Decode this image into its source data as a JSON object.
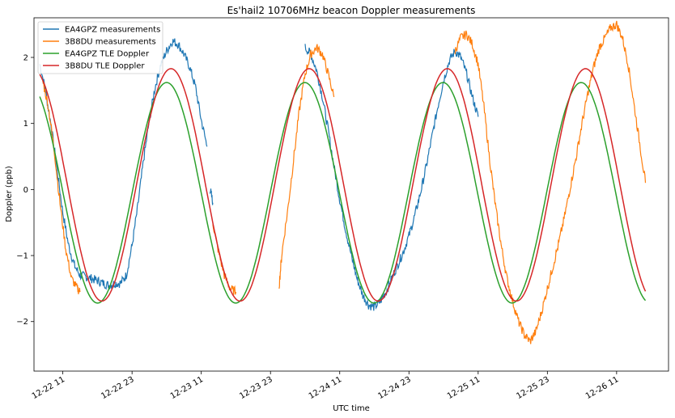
{
  "chart_data": {
    "type": "line",
    "title": "Es'hail2 10706MHz beacon Doppler measurements",
    "xlabel": "UTC time",
    "ylabel": "Doppler (ppb)",
    "xlim": [
      "2018-12-22 06:00",
      "2018-12-26 20:00"
    ],
    "ylim": [
      -2.75,
      2.6
    ],
    "x_ticks": [
      {
        "value": "2018-12-22 11:00",
        "label": "12-22 11"
      },
      {
        "value": "2018-12-22 23:00",
        "label": "12-22 23"
      },
      {
        "value": "2018-12-23 11:00",
        "label": "12-23 11"
      },
      {
        "value": "2018-12-23 23:00",
        "label": "12-23 23"
      },
      {
        "value": "2018-12-24 11:00",
        "label": "12-24 11"
      },
      {
        "value": "2018-12-24 23:00",
        "label": "12-24 23"
      },
      {
        "value": "2018-12-25 11:00",
        "label": "12-25 11"
      },
      {
        "value": "2018-12-25 23:00",
        "label": "12-25 23"
      },
      {
        "value": "2018-12-26 11:00",
        "label": "12-26 11"
      }
    ],
    "y_ticks": [
      {
        "value": -2,
        "label": "−2"
      },
      {
        "value": -1,
        "label": "−1"
      },
      {
        "value": 0,
        "label": "0"
      },
      {
        "value": 1,
        "label": "1"
      },
      {
        "value": 2,
        "label": "2"
      }
    ],
    "grid": false,
    "legend_position": "top-left",
    "series": [
      {
        "name": "EA4GPZ measurements",
        "color": "#1f77b4",
        "segments": [
          {
            "x": [
              "2018-12-22 07:00",
              "2018-12-22 08:00",
              "2018-12-22 09:00",
              "2018-12-22 10:00",
              "2018-12-22 11:00",
              "2018-12-22 12:00",
              "2018-12-22 13:00",
              "2018-12-22 14:00",
              "2018-12-22 15:00",
              "2018-12-22 16:00",
              "2018-12-22 17:00",
              "2018-12-22 18:00",
              "2018-12-22 19:00",
              "2018-12-22 20:00",
              "2018-12-22 21:00",
              "2018-12-22 22:00",
              "2018-12-22 23:00",
              "2018-12-23 00:00",
              "2018-12-23 01:00",
              "2018-12-23 02:00",
              "2018-12-23 03:00",
              "2018-12-23 04:00",
              "2018-12-23 05:00",
              "2018-12-23 06:00",
              "2018-12-23 07:00",
              "2018-12-23 08:00",
              "2018-12-23 09:00",
              "2018-12-23 10:00",
              "2018-12-23 11:00",
              "2018-12-23 12:00"
            ],
            "y": [
              1.9,
              1.5,
              0.95,
              0.3,
              -0.35,
              -0.85,
              -1.15,
              -1.3,
              -1.32,
              -1.35,
              -1.38,
              -1.42,
              -1.45,
              -1.42,
              -1.42,
              -1.3,
              -0.85,
              -0.25,
              0.45,
              1.05,
              1.55,
              1.9,
              2.1,
              2.25,
              2.2,
              2.05,
              1.85,
              1.55,
              1.05,
              0.65
            ]
          },
          {
            "x": [
              "2018-12-23 12:30",
              "2018-12-23 13:00"
            ],
            "y": [
              0.02,
              -0.2
            ]
          },
          {
            "x": [
              "2018-12-24 05:00",
              "2018-12-24 06:00",
              "2018-12-24 07:00",
              "2018-12-24 08:00",
              "2018-12-24 09:00",
              "2018-12-24 10:00",
              "2018-12-24 11:00",
              "2018-12-24 12:00",
              "2018-12-24 13:00",
              "2018-12-24 14:00",
              "2018-12-24 15:00",
              "2018-12-24 16:00",
              "2018-12-24 17:00",
              "2018-12-24 18:00",
              "2018-12-24 19:00",
              "2018-12-24 20:00",
              "2018-12-24 21:00",
              "2018-12-24 22:00",
              "2018-12-24 23:00",
              "2018-12-25 00:00",
              "2018-12-25 01:00",
              "2018-12-25 02:00",
              "2018-12-25 03:00",
              "2018-12-25 04:00",
              "2018-12-25 05:00",
              "2018-12-25 06:00",
              "2018-12-25 07:00",
              "2018-12-25 08:00",
              "2018-12-25 09:00",
              "2018-12-25 10:00",
              "2018-12-25 11:00"
            ],
            "y": [
              2.15,
              2.05,
              1.8,
              1.4,
              0.9,
              0.35,
              -0.15,
              -0.6,
              -1.0,
              -1.35,
              -1.6,
              -1.75,
              -1.78,
              -1.7,
              -1.55,
              -1.35,
              -1.15,
              -0.95,
              -0.7,
              -0.4,
              -0.05,
              0.35,
              0.8,
              1.25,
              1.65,
              1.95,
              2.1,
              2.0,
              1.75,
              1.4,
              1.1
            ]
          }
        ]
      },
      {
        "name": "3B8DU measurements",
        "color": "#ff7f0e",
        "segments": [
          {
            "x": [
              "2018-12-22 07:30",
              "2018-12-22 08:30",
              "2018-12-22 09:30",
              "2018-12-22 10:30",
              "2018-12-22 11:30",
              "2018-12-22 12:30",
              "2018-12-22 13:30",
              "2018-12-22 14:00"
            ],
            "y": [
              1.65,
              1.25,
              0.6,
              -0.2,
              -0.9,
              -1.35,
              -1.5,
              -1.55
            ]
          },
          {
            "x": [
              "2018-12-23 13:00",
              "2018-12-23 14:00",
              "2018-12-23 15:00",
              "2018-12-23 16:00",
              "2018-12-23 17:00"
            ],
            "y": [
              -0.5,
              -0.95,
              -1.3,
              -1.5,
              -1.55
            ]
          },
          {
            "x": [
              "2018-12-24 00:30",
              "2018-12-24 01:00",
              "2018-12-24 02:00",
              "2018-12-24 03:00",
              "2018-12-24 04:00",
              "2018-12-24 05:00",
              "2018-12-24 06:00",
              "2018-12-24 07:00",
              "2018-12-24 08:00",
              "2018-12-24 09:00",
              "2018-12-24 10:00"
            ],
            "y": [
              -1.45,
              -0.95,
              -0.3,
              0.45,
              1.2,
              1.75,
              2.05,
              2.15,
              2.05,
              1.75,
              1.4
            ]
          },
          {
            "x": [
              "2018-12-25 07:00",
              "2018-12-25 08:00",
              "2018-12-25 09:00",
              "2018-12-25 10:00",
              "2018-12-25 11:00",
              "2018-12-25 12:00",
              "2018-12-25 13:00",
              "2018-12-25 14:00",
              "2018-12-25 15:00",
              "2018-12-25 16:00",
              "2018-12-25 17:00",
              "2018-12-25 18:00",
              "2018-12-25 19:00",
              "2018-12-25 20:00",
              "2018-12-25 21:00",
              "2018-12-25 22:00",
              "2018-12-25 23:00",
              "2018-12-26 00:00",
              "2018-12-26 01:00",
              "2018-12-26 02:00",
              "2018-12-26 03:00",
              "2018-12-26 04:00",
              "2018-12-26 05:00",
              "2018-12-26 06:00",
              "2018-12-26 07:00",
              "2018-12-26 08:00",
              "2018-12-26 09:00",
              "2018-12-26 10:00",
              "2018-12-26 11:00",
              "2018-12-26 12:00",
              "2018-12-26 13:00",
              "2018-12-26 14:00",
              "2018-12-26 15:00",
              "2018-12-26 16:00"
            ],
            "y": [
              2.1,
              2.3,
              2.35,
              2.2,
              1.9,
              1.25,
              0.45,
              -0.25,
              -0.85,
              -1.35,
              -1.7,
              -2.0,
              -2.2,
              -2.3,
              -2.15,
              -1.85,
              -1.5,
              -1.15,
              -0.8,
              -0.4,
              0.05,
              0.5,
              1.0,
              1.45,
              1.85,
              2.15,
              2.3,
              2.45,
              2.5,
              2.3,
              1.9,
              1.3,
              0.7,
              0.1
            ]
          }
        ]
      },
      {
        "name": "EA4GPZ TLE Doppler",
        "color": "#2ca02c",
        "function": {
          "mean": -0.05,
          "amplitude": 1.67,
          "period_hours": 23.95,
          "peak": "2018-12-23 05:00"
        },
        "x_range": [
          "2018-12-22 07:00",
          "2018-12-26 16:00"
        ]
      },
      {
        "name": "3B8DU TLE Doppler",
        "color": "#d62728",
        "function": {
          "mean": 0.07,
          "amplitude": 1.76,
          "period_hours": 23.95,
          "peak": "2018-12-23 05:45"
        },
        "x_range": [
          "2018-12-22 07:00",
          "2018-12-26 16:00"
        ]
      }
    ]
  }
}
